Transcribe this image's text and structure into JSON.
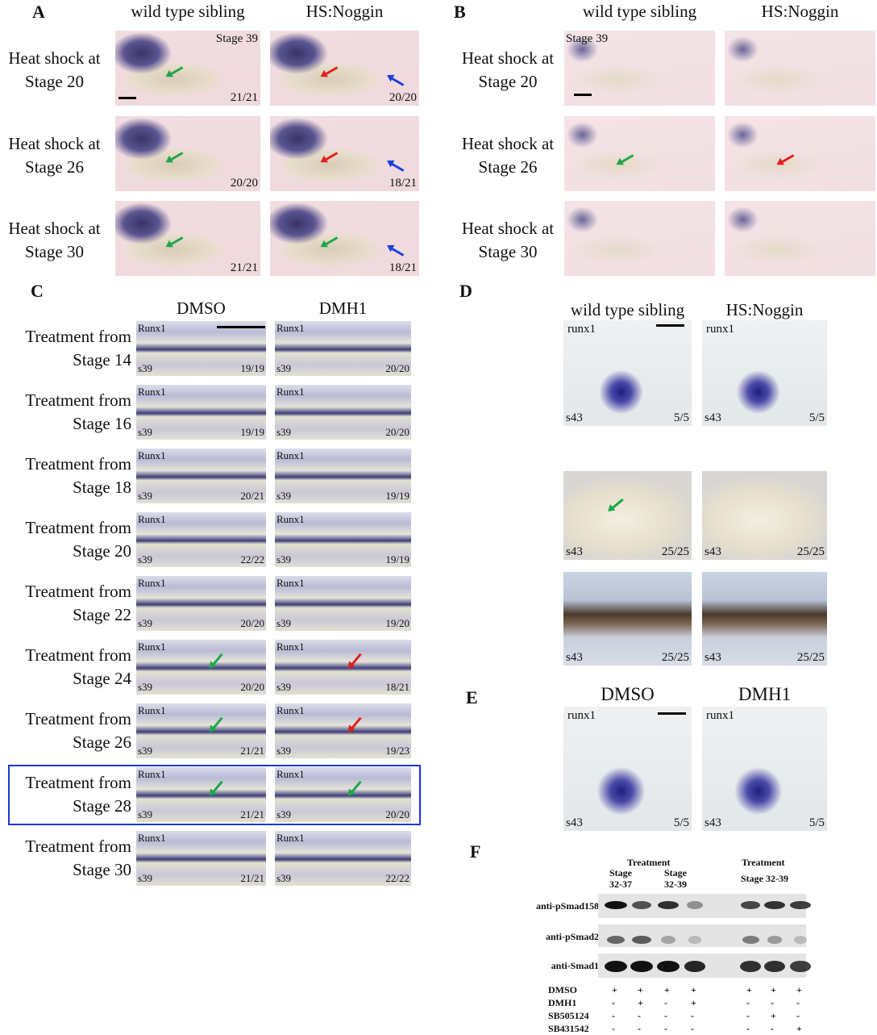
{
  "colors": {
    "green_arrow": "#1fa64a",
    "red_arrow": "#e02020",
    "blue_arrow": "#1a3ee0",
    "highlight_box": "#1f36d4"
  },
  "panelA": {
    "label": "A",
    "cols": [
      "wild type sibling",
      "HS:Noggin"
    ],
    "stage_tag": "Stage 39",
    "rows": [
      {
        "label": "Heat shock at Stage 20",
        "counts": [
          "21/21",
          "20/20"
        ],
        "arrows": [
          [
            "green"
          ],
          [
            "red",
            "blue"
          ]
        ]
      },
      {
        "label": "Heat shock at Stage 26",
        "counts": [
          "20/20",
          "18/21"
        ],
        "arrows": [
          [
            "green"
          ],
          [
            "red",
            "blue"
          ]
        ]
      },
      {
        "label": "Heat shock at Stage 30",
        "counts": [
          "21/21",
          "18/21"
        ],
        "arrows": [
          [
            "green"
          ],
          [
            "green",
            "blue"
          ]
        ]
      }
    ]
  },
  "panelB": {
    "label": "B",
    "cols": [
      "wild type sibling",
      "HS:Noggin"
    ],
    "stage_tag": "Stage 39",
    "rows": [
      {
        "label": "Heat shock at Stage 20",
        "arrows": [
          [],
          []
        ]
      },
      {
        "label": "Heat shock at Stage 26",
        "arrows": [
          [
            "green"
          ],
          [
            "red"
          ]
        ]
      },
      {
        "label": "Heat shock at Stage 30",
        "arrows": [
          [],
          []
        ]
      }
    ]
  },
  "panelC": {
    "label": "C",
    "cols": [
      "DMSO",
      "DMH1"
    ],
    "gene": "Runx1",
    "stage": "s39",
    "rows": [
      {
        "label1": "Treatment from",
        "label2": "Stage 14",
        "counts": [
          "19/19",
          "20/20"
        ],
        "arrows": [
          [],
          []
        ]
      },
      {
        "label1": "Treatment from",
        "label2": "Stage 16",
        "counts": [
          "19/19",
          "20/20"
        ],
        "arrows": [
          [],
          []
        ]
      },
      {
        "label1": "Treatment from",
        "label2": "Stage 18",
        "counts": [
          "20/21",
          "19/19"
        ],
        "arrows": [
          [],
          []
        ]
      },
      {
        "label1": "Treatment from",
        "label2": "Stage 20",
        "counts": [
          "22/22",
          "19/19"
        ],
        "arrows": [
          [],
          []
        ]
      },
      {
        "label1": "Treatment from",
        "label2": "Stage 22",
        "counts": [
          "20/20",
          "19/20"
        ],
        "arrows": [
          [],
          []
        ]
      },
      {
        "label1": "Treatment from",
        "label2": "Stage 24",
        "counts": [
          "20/20",
          "18/21"
        ],
        "arrows": [
          [
            "green"
          ],
          [
            "red"
          ]
        ]
      },
      {
        "label1": "Treatment from",
        "label2": "Stage 26",
        "counts": [
          "21/21",
          "19/23"
        ],
        "arrows": [
          [
            "green"
          ],
          [
            "red"
          ]
        ]
      },
      {
        "label1": "Treatment from",
        "label2": "Stage 28",
        "counts": [
          "21/21",
          "20/20"
        ],
        "arrows": [
          [
            "green"
          ],
          [
            "green"
          ]
        ],
        "highlighted": true
      },
      {
        "label1": "Treatment from",
        "label2": "Stage 30",
        "counts": [
          "21/21",
          "22/22"
        ],
        "arrows": [
          [],
          []
        ]
      }
    ]
  },
  "panelD": {
    "label": "D",
    "cols": [
      "wild type sibling",
      "HS:Noggin"
    ],
    "gene": "runx1",
    "stage": "s43",
    "rows": [
      {
        "counts": [
          "5/5",
          "5/5"
        ]
      },
      {
        "counts": [
          "25/25",
          "25/25"
        ]
      },
      {
        "counts": [
          "25/25",
          "25/25"
        ]
      }
    ]
  },
  "panelE": {
    "label": "E",
    "cols": [
      "DMSO",
      "DMH1"
    ],
    "gene": "runx1",
    "stage": "s43",
    "counts": [
      "5/5",
      "5/5"
    ]
  },
  "panelF": {
    "label": "F",
    "groups": [
      {
        "title": "Treatment",
        "sub": [
          {
            "a": "Stage",
            "b": "32-37"
          },
          {
            "a": "Stage",
            "b": "32-39"
          }
        ]
      },
      {
        "title": "Treatment",
        "sub2": "Stage 32-39"
      }
    ],
    "blots": [
      {
        "name": "anti-pSmad158",
        "intensity": [
          1,
          0.7,
          0.85,
          0.4,
          0.75,
          0.85,
          0.8
        ]
      },
      {
        "name": "anti-pSmad2",
        "intensity": [
          0.6,
          0.65,
          0.3,
          0.2,
          0.5,
          0.35,
          0.2
        ]
      },
      {
        "name": "anti-Smad1",
        "intensity": [
          1,
          1,
          1,
          0.9,
          0.85,
          0.85,
          0.8
        ]
      }
    ],
    "treatments": [
      {
        "name": "DMSO",
        "values": [
          "+",
          "+",
          "+",
          "+",
          "+",
          "+",
          "+"
        ]
      },
      {
        "name": "DMH1",
        "values": [
          "-",
          "+",
          "-",
          "+",
          "-",
          "-",
          "-"
        ]
      },
      {
        "name": "SB505124",
        "values": [
          "-",
          "-",
          "-",
          "-",
          "-",
          "+",
          "-"
        ]
      },
      {
        "name": "SB431542",
        "values": [
          "-",
          "-",
          "-",
          "-",
          "-",
          "-",
          "+"
        ]
      }
    ]
  }
}
